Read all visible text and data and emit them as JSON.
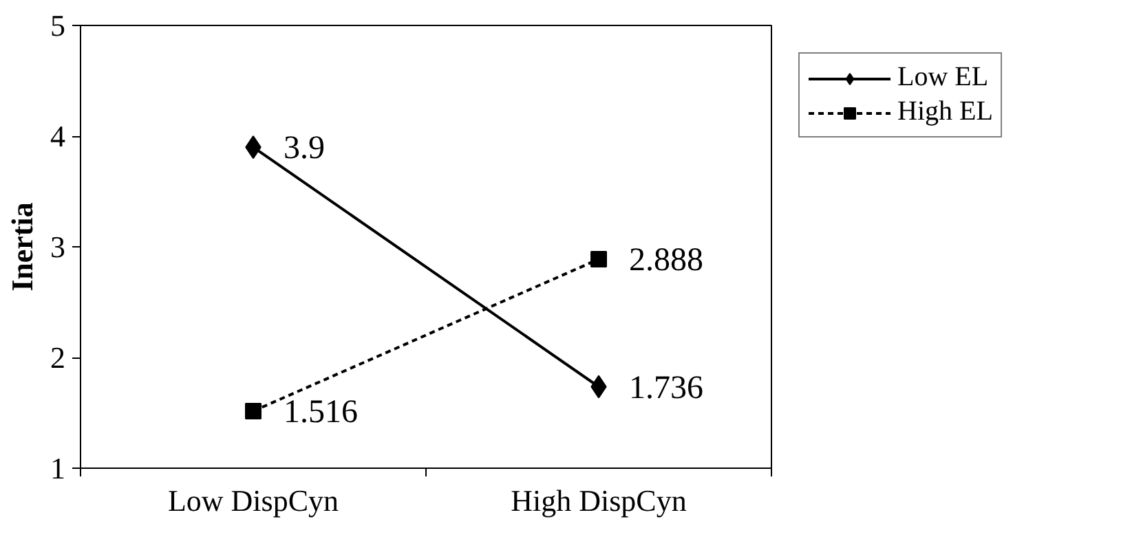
{
  "chart_data": {
    "type": "line",
    "ylabel": "Inertia",
    "categories": [
      "Low DispCyn",
      "High DispCyn"
    ],
    "series": [
      {
        "name": "Low EL",
        "color": "#000000",
        "values": [
          3.9,
          1.736
        ],
        "marker": "diamond",
        "line_style": "solid"
      },
      {
        "name": "High EL",
        "color": "#000000",
        "values": [
          1.516,
          2.888
        ],
        "marker": "square",
        "line_style": "dashed"
      }
    ],
    "ylim": [
      1,
      5
    ],
    "yticks": [
      1,
      2,
      3,
      4,
      5
    ],
    "grid": false,
    "legend": "top right",
    "data_labels": true
  }
}
